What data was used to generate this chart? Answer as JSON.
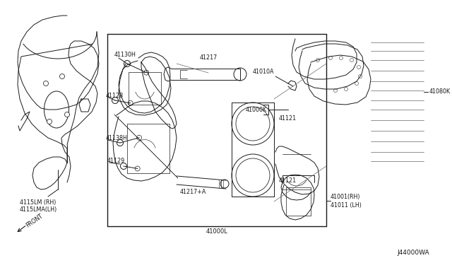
{
  "bg_color": "#ffffff",
  "line_color": "#1a1a1a",
  "gray_color": "#666666",
  "diagram_ref": "J44000WA",
  "labels": {
    "shield_rh": "4115LM (RH)",
    "shield_lh": "4115LMA(LH)",
    "front_arrow": "FRONT",
    "box_label": "41000L",
    "pad_kit": "41000K",
    "inner_shim": "41080K",
    "caliper_rh": "41001(RH)",
    "caliper_lh": "41011 (LH)",
    "bolt1": "41130H",
    "bolt2": "41138H",
    "bolt3": "41129",
    "bolt4": "41128",
    "guide_pin": "41217",
    "guide_pin2": "41217+A",
    "piston": "41121",
    "piston2": "41121",
    "pad": "41010A"
  }
}
